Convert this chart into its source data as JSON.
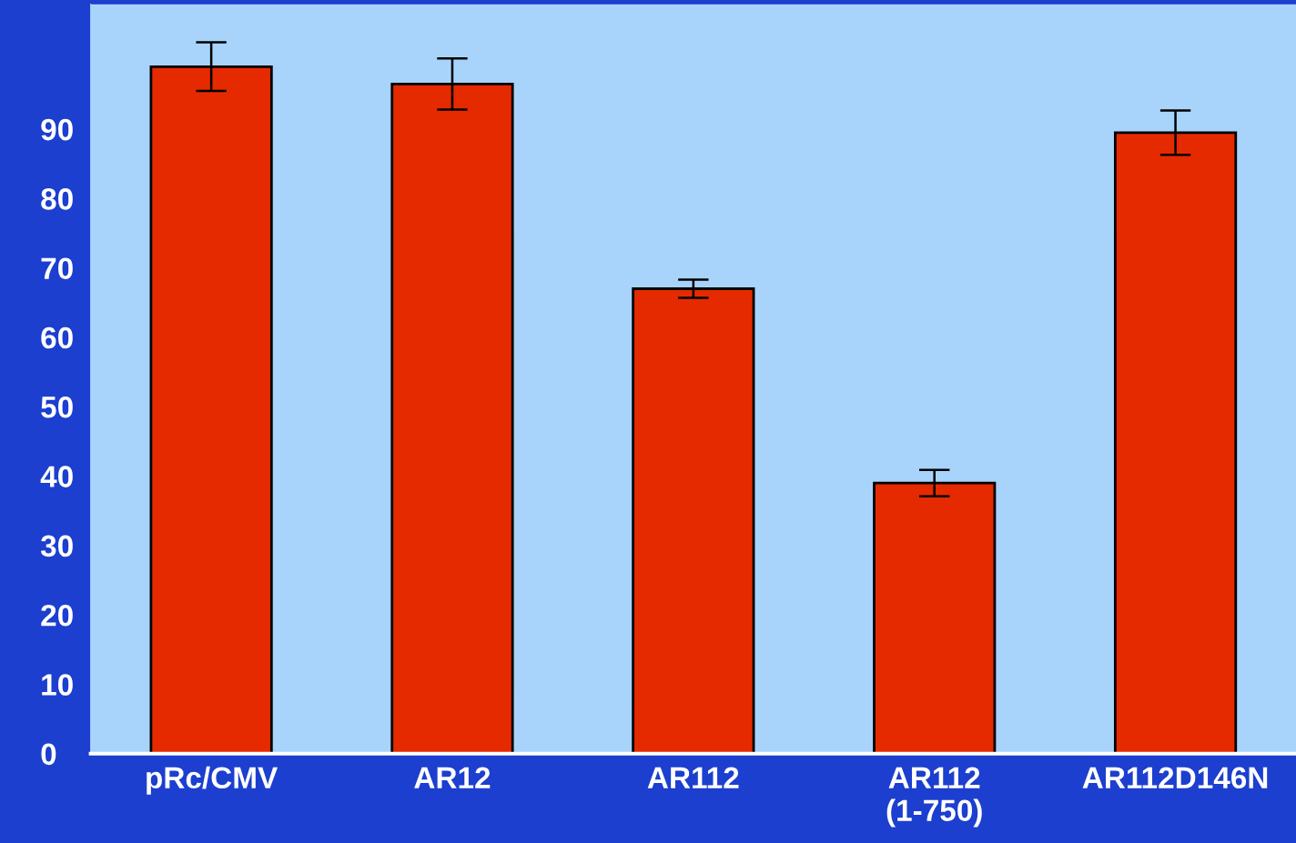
{
  "chart_data": {
    "type": "bar",
    "categories": [
      "pRc/CMV",
      "AR12",
      "AR112",
      "AR112\n(1-750)",
      "AR112D146N"
    ],
    "values": [
      99,
      96.5,
      67,
      39,
      89.5
    ],
    "errors": [
      3.5,
      3.7,
      1.3,
      1.9,
      3.2
    ],
    "color": "#e52a00",
    "ylim": [
      0,
      108
    ],
    "yticks": [
      0,
      10,
      20,
      30,
      40,
      50,
      60,
      70,
      80,
      90
    ],
    "grid": false,
    "legend": false
  }
}
